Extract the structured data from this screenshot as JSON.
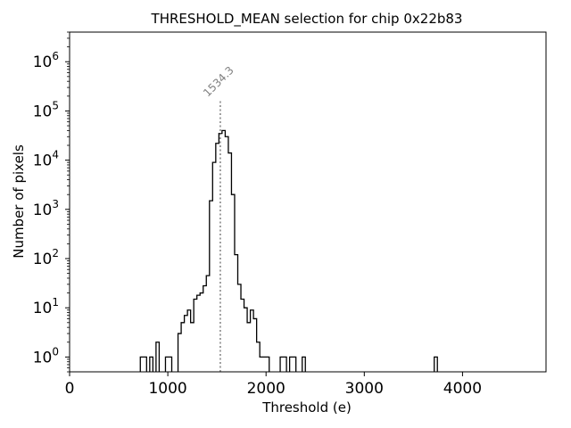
{
  "chart_data": {
    "type": "histogram",
    "title": "THRESHOLD_MEAN selection for chip 0x22b83",
    "xlabel": "Threshold (e)",
    "ylabel": "Number of pixels",
    "xlim": [
      0,
      4850
    ],
    "ylim": [
      0.5,
      4000000
    ],
    "y_scale": "log",
    "grid": false,
    "x_ticks": [
      0,
      1000,
      2000,
      3000,
      4000
    ],
    "x_tick_labels": [
      "0",
      "1000",
      "2000",
      "3000",
      "4000"
    ],
    "y_ticks": [
      1,
      10,
      100,
      1000,
      10000,
      100000,
      1000000
    ],
    "y_tick_labels": [
      {
        "base": "10",
        "exp": "0"
      },
      {
        "base": "10",
        "exp": "1"
      },
      {
        "base": "10",
        "exp": "2"
      },
      {
        "base": "10",
        "exp": "3"
      },
      {
        "base": "10",
        "exp": "4"
      },
      {
        "base": "10",
        "exp": "5"
      },
      {
        "base": "10",
        "exp": "6"
      }
    ],
    "bin_width": 32,
    "bins": [
      {
        "x": 720,
        "count": 1
      },
      {
        "x": 752,
        "count": 1
      },
      {
        "x": 816,
        "count": 1
      },
      {
        "x": 880,
        "count": 2
      },
      {
        "x": 976,
        "count": 1
      },
      {
        "x": 1008,
        "count": 1
      },
      {
        "x": 1104,
        "count": 3
      },
      {
        "x": 1136,
        "count": 5
      },
      {
        "x": 1168,
        "count": 7
      },
      {
        "x": 1200,
        "count": 9
      },
      {
        "x": 1232,
        "count": 5
      },
      {
        "x": 1264,
        "count": 15
      },
      {
        "x": 1296,
        "count": 18
      },
      {
        "x": 1328,
        "count": 20
      },
      {
        "x": 1360,
        "count": 28
      },
      {
        "x": 1392,
        "count": 45
      },
      {
        "x": 1424,
        "count": 1500
      },
      {
        "x": 1456,
        "count": 9000
      },
      {
        "x": 1488,
        "count": 22000
      },
      {
        "x": 1520,
        "count": 35000
      },
      {
        "x": 1552,
        "count": 40000
      },
      {
        "x": 1584,
        "count": 30000
      },
      {
        "x": 1616,
        "count": 14000
      },
      {
        "x": 1648,
        "count": 2000
      },
      {
        "x": 1680,
        "count": 120
      },
      {
        "x": 1712,
        "count": 30
      },
      {
        "x": 1744,
        "count": 15
      },
      {
        "x": 1776,
        "count": 10
      },
      {
        "x": 1808,
        "count": 5
      },
      {
        "x": 1840,
        "count": 9
      },
      {
        "x": 1872,
        "count": 6
      },
      {
        "x": 1904,
        "count": 2
      },
      {
        "x": 1936,
        "count": 1
      },
      {
        "x": 1968,
        "count": 1
      },
      {
        "x": 2000,
        "count": 1
      },
      {
        "x": 2144,
        "count": 1
      },
      {
        "x": 2176,
        "count": 1
      },
      {
        "x": 2240,
        "count": 1
      },
      {
        "x": 2272,
        "count": 1
      },
      {
        "x": 2368,
        "count": 1
      },
      {
        "x": 3712,
        "count": 1
      }
    ],
    "reference_line": {
      "x": 1534.3,
      "label": "1534.3",
      "style": "dotted",
      "color": "#808080"
    },
    "line_color": "#000000"
  }
}
